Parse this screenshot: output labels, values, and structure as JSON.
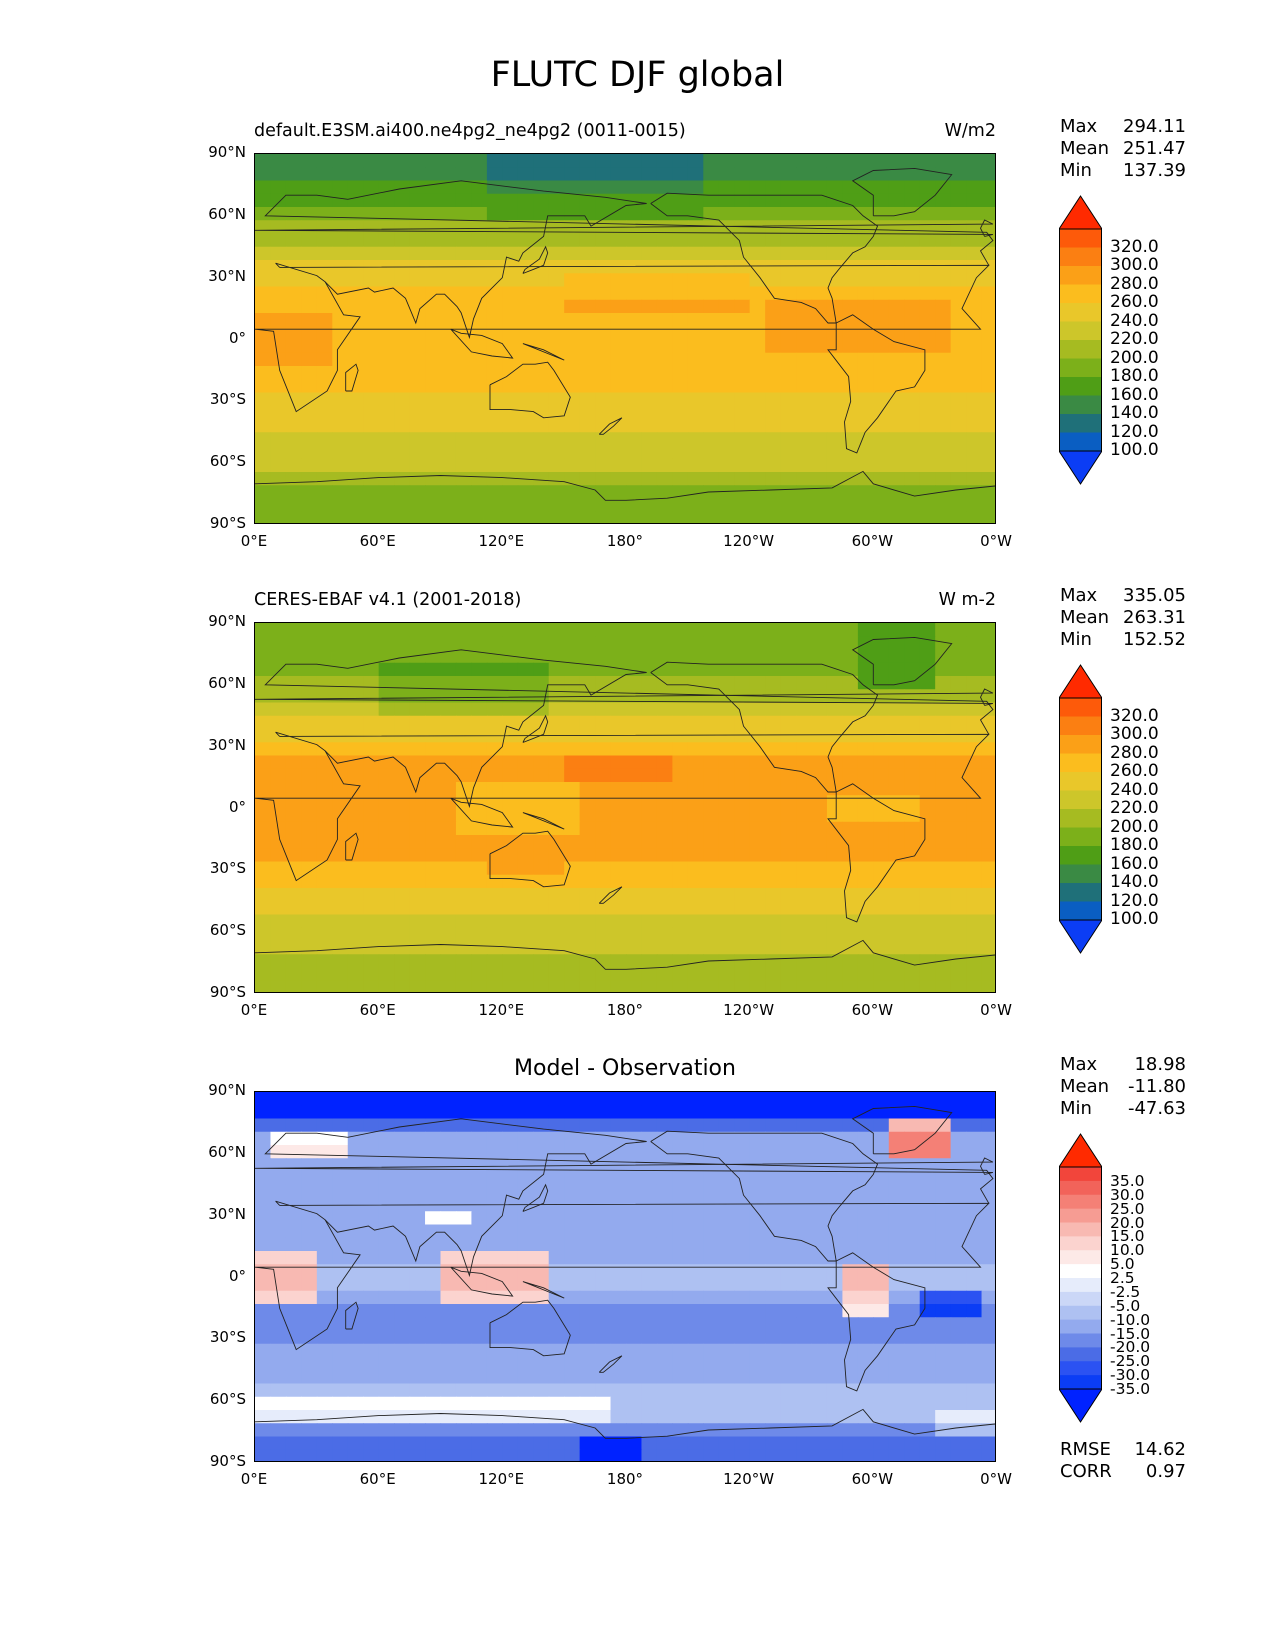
{
  "figure": {
    "title": "FLUTC DJF global"
  },
  "panels": [
    {
      "left_title": "default.E3SM.ai400.ne4pg2_ne4pg2 (0011-0015)",
      "right_title": "W/m2",
      "stats": [
        {
          "label": "Max",
          "value": "294.11"
        },
        {
          "label": "Mean",
          "value": "251.47"
        },
        {
          "label": "Min",
          "value": "137.39"
        }
      ]
    },
    {
      "left_title": "CERES-EBAF v4.1 (2001-2018)",
      "right_title": "W m-2",
      "stats": [
        {
          "label": "Max",
          "value": "335.05"
        },
        {
          "label": "Mean",
          "value": "263.31"
        },
        {
          "label": "Min",
          "value": "152.52"
        }
      ]
    },
    {
      "center_title": "Model - Observation",
      "stats": [
        {
          "label": "Max",
          "value": "18.98"
        },
        {
          "label": "Mean",
          "value": "-11.80"
        },
        {
          "label": "Min",
          "value": "-47.63"
        }
      ],
      "bottom_stats": [
        {
          "label": "RMSE",
          "value": "14.62"
        },
        {
          "label": "CORR",
          "value": "0.97"
        }
      ]
    }
  ],
  "axes": {
    "y_ticks": [
      "90°N",
      "60°N",
      "30°N",
      "0°",
      "30°S",
      "60°S",
      "90°S"
    ],
    "x_ticks": [
      "0°E",
      "60°E",
      "120°E",
      "180°",
      "120°W",
      "60°W",
      "0°W"
    ]
  },
  "colorbars": {
    "field": {
      "labels": [
        "320.0",
        "300.0",
        "280.0",
        "260.0",
        "240.0",
        "220.0",
        "200.0",
        "180.0",
        "160.0",
        "140.0",
        "120.0",
        "100.0"
      ],
      "colors_top_to_bottom": [
        "#ff2a00",
        "#fd5a0a",
        "#fb7f12",
        "#fba017",
        "#fbbd1e",
        "#e9c72a",
        "#cdc62a",
        "#a6bb21",
        "#7cb01a",
        "#4f9e16",
        "#3a8a44",
        "#1f7079",
        "#0a5ec2",
        "#0b3df5"
      ]
    },
    "diff": {
      "labels": [
        "35.0",
        "30.0",
        "25.0",
        "20.0",
        "15.0",
        "10.0",
        "5.0",
        "2.5",
        "-2.5",
        "-5.0",
        "-10.0",
        "-15.0",
        "-20.0",
        "-25.0",
        "-30.0",
        "-35.0"
      ],
      "colors_top_to_bottom": [
        "#ff2a00",
        "#f2453b",
        "#f2635a",
        "#f48076",
        "#f69c93",
        "#f8b9b2",
        "#fbd3cf",
        "#fde9e7",
        "#ffffff",
        "#e6ecfb",
        "#cbd7f7",
        "#aec1f2",
        "#93aaee",
        "#6e8ae9",
        "#4b6ce6",
        "#2b52f2",
        "#0b3df5",
        "#0022ff"
      ]
    }
  },
  "chart_data": [
    {
      "type": "heatmap",
      "title": "default.E3SM.ai400.ne4pg2_ne4pg2 (0011-0015)",
      "units": "W/m2",
      "xlabel": "",
      "ylabel": "",
      "x": [
        "0°E",
        "60°E",
        "120°E",
        "180°",
        "120°W",
        "60°W",
        "0°W"
      ],
      "y_lat_bands": [
        80,
        65,
        50,
        35,
        20,
        5,
        -5,
        -20,
        -35,
        -50,
        -65,
        -80
      ],
      "band_values": [
        145,
        185,
        215,
        245,
        270,
        275,
        275,
        265,
        250,
        235,
        215,
        185
      ],
      "max": 294.11,
      "mean": 251.47,
      "min": 137.39
    },
    {
      "type": "heatmap",
      "title": "CERES-EBAF v4.1 (2001-2018)",
      "units": "W m-2",
      "xlabel": "",
      "ylabel": "",
      "x": [
        "0°E",
        "60°E",
        "120°E",
        "180°",
        "120°W",
        "60°W",
        "0°W"
      ],
      "y_lat_bands": [
        80,
        65,
        50,
        35,
        20,
        5,
        -5,
        -20,
        -35,
        -50,
        -65,
        -80
      ],
      "band_values": [
        190,
        200,
        225,
        255,
        285,
        280,
        280,
        285,
        265,
        245,
        225,
        205
      ],
      "max": 335.05,
      "mean": 263.31,
      "min": 152.52
    },
    {
      "type": "heatmap",
      "title": "Model - Observation",
      "xlabel": "",
      "ylabel": "",
      "x": [
        "0°E",
        "60°E",
        "120°E",
        "180°",
        "120°W",
        "60°W",
        "0°W"
      ],
      "y_lat_bands": [
        80,
        65,
        50,
        35,
        20,
        5,
        -5,
        -20,
        -35,
        -50,
        -65,
        -80
      ],
      "band_values": [
        -30,
        -12,
        -10,
        -12,
        -15,
        -8,
        -8,
        -18,
        -15,
        -12,
        -5,
        -25
      ],
      "max": 18.98,
      "mean": -11.8,
      "min": -47.63,
      "rmse": 14.62,
      "corr": 0.97
    }
  ]
}
